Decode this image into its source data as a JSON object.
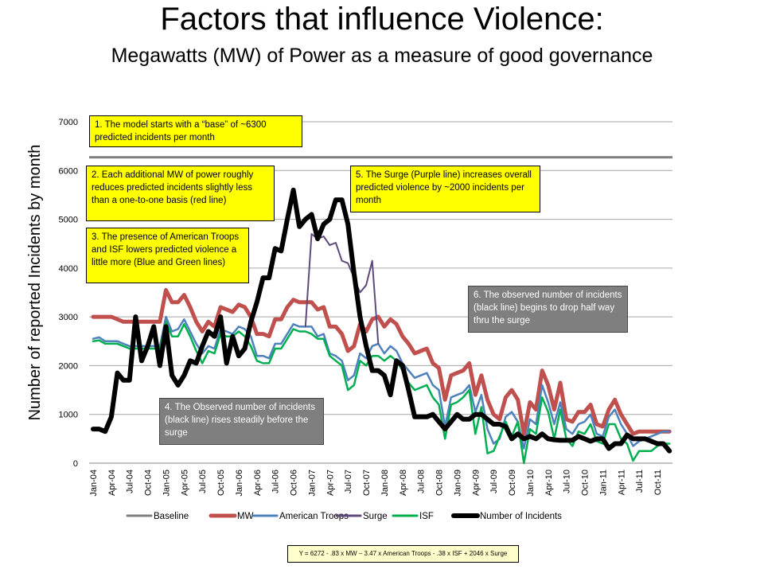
{
  "title": "Factors that influence Violence:",
  "subtitle": "Megawatts (MW) of Power as a measure of good governance",
  "annotations": {
    "note1": "1. The model starts with a “base” of ~6300 predicted incidents per month",
    "note2": "2. Each additional MW of power roughly reduces predicted incidents slightly less than a one-to-one basis (red line)",
    "note3": "3. The presence of American Troops and ISF lowers predicted violence a little more (Blue and Green lines)",
    "note4": "4. The Observed number of incidents (black line) rises steadily before the surge",
    "note5": "5. The Surge (Purple line) increases overall predicted violence by ~2000 incidents per month",
    "note6": "6. The observed number of incidents (black line) begins to drop half way thru the surge"
  },
  "formula": "Y = 6272 - .83 x MW – 3.47 x American  Troops - .38 x ISF + 2046 x Surge",
  "chart_data": {
    "type": "line",
    "ylabel": "Number of reported Incidents by month",
    "xlabel": "",
    "ylim": [
      0,
      7000
    ],
    "yticks": [
      0,
      1000,
      2000,
      3000,
      4000,
      5000,
      6000,
      7000
    ],
    "grid": true,
    "legend_placement": "bottom",
    "x_start": "Jan-04",
    "x_frequency": "monthly",
    "xtick_labels": [
      "Jan-04",
      "Apr-04",
      "Jul-04",
      "Oct-04",
      "Jan-05",
      "Apr-05",
      "Jul-05",
      "Oct-05",
      "Jan-06",
      "Apr-06",
      "Jul-06",
      "Oct-06",
      "Jan-07",
      "Apr-07",
      "Jul-07",
      "Oct-07",
      "Jan-08",
      "Apr-08",
      "Jul-08",
      "Oct-08",
      "Jan-09",
      "Apr-09",
      "Jul-09",
      "Oct-09",
      "Jan-10",
      "Apr-10",
      "Jul-10",
      "Oct-10",
      "Jan-11",
      "Apr-11",
      "Jul-11",
      "Oct-11"
    ],
    "series": [
      {
        "name": "Baseline",
        "color": "#808080",
        "constant": 6272
      },
      {
        "name": "MW",
        "color": "#c0504d",
        "values": [
          3000,
          3000,
          3000,
          3000,
          2950,
          2900,
          2900,
          2900,
          2900,
          2900,
          2900,
          2900,
          3550,
          3300,
          3300,
          3450,
          3200,
          2900,
          2700,
          2900,
          2800,
          3200,
          3150,
          3100,
          3250,
          3200,
          3000,
          2650,
          2650,
          2600,
          2950,
          2950,
          3200,
          3350,
          3300,
          3300,
          3300,
          3150,
          3200,
          2800,
          2800,
          2650,
          2300,
          2400,
          2850,
          2700,
          2950,
          3000,
          2800,
          2950,
          2850,
          2600,
          2450,
          2250,
          2300,
          2350,
          2050,
          1950,
          1300,
          1800,
          1850,
          1900,
          2050,
          1400,
          1800,
          1300,
          1000,
          900,
          1350,
          1500,
          1300,
          600,
          1250,
          1100,
          1900,
          1600,
          1100,
          1650,
          900,
          850,
          1050,
          1050,
          1200,
          800,
          750,
          1100,
          1300,
          1000,
          800,
          600,
          650,
          650,
          650,
          650,
          650,
          650
        ]
      },
      {
        "name": "American Troops",
        "color": "#4f81bd",
        "values": [
          2550,
          2580,
          2500,
          2500,
          2500,
          2450,
          2400,
          2400,
          2400,
          2400,
          2400,
          2400,
          3000,
          2700,
          2750,
          2950,
          2700,
          2450,
          2250,
          2400,
          2350,
          2750,
          2700,
          2650,
          2800,
          2750,
          2600,
          2200,
          2200,
          2150,
          2450,
          2450,
          2650,
          2850,
          2800,
          2800,
          2800,
          2600,
          2650,
          2250,
          2200,
          2100,
          1700,
          1800,
          2250,
          2150,
          2400,
          2450,
          2250,
          2400,
          2300,
          2050,
          1900,
          1750,
          1800,
          1850,
          1600,
          1500,
          750,
          1350,
          1400,
          1450,
          1600,
          1050,
          1400,
          700,
          400,
          500,
          950,
          1050,
          850,
          300,
          900,
          800,
          1600,
          1250,
          800,
          1250,
          700,
          600,
          800,
          850,
          1000,
          600,
          550,
          950,
          1100,
          800,
          600,
          350,
          450,
          500,
          550,
          600,
          650,
          650
        ]
      },
      {
        "name": "Surge",
        "color": "#604a7b",
        "values": [
          null,
          null,
          null,
          null,
          null,
          null,
          null,
          null,
          null,
          null,
          null,
          null,
          null,
          null,
          null,
          null,
          null,
          null,
          null,
          null,
          null,
          null,
          null,
          null,
          null,
          null,
          null,
          null,
          null,
          null,
          null,
          null,
          null,
          null,
          null,
          2800,
          4700,
          4600,
          4650,
          4470,
          4520,
          4150,
          4100,
          3800,
          3500,
          3650,
          4150,
          2450,
          null,
          null,
          null,
          null,
          null,
          null,
          null,
          null,
          null,
          null,
          null,
          null,
          null,
          null,
          null,
          null,
          null,
          null,
          null,
          null,
          null,
          null,
          null,
          null,
          null,
          null,
          null,
          null,
          null,
          null,
          null,
          null,
          null,
          null,
          null,
          null,
          null,
          null,
          null,
          null,
          null,
          null,
          null,
          null,
          null,
          null,
          null,
          null
        ]
      },
      {
        "name": "ISF",
        "color": "#00b050",
        "values": [
          2500,
          2520,
          2450,
          2450,
          2450,
          2400,
          2350,
          2350,
          2350,
          2350,
          2350,
          2350,
          2900,
          2600,
          2600,
          2850,
          2600,
          2300,
          2050,
          2300,
          2250,
          2650,
          2600,
          2600,
          2700,
          2600,
          2400,
          2100,
          2050,
          2050,
          2350,
          2350,
          2550,
          2750,
          2700,
          2700,
          2650,
          2550,
          2550,
          2200,
          2100,
          2000,
          1500,
          1600,
          2100,
          2000,
          2200,
          2200,
          2100,
          2200,
          2100,
          1900,
          1650,
          1500,
          1550,
          1600,
          1350,
          1200,
          500,
          1200,
          1250,
          1350,
          1500,
          600,
          1150,
          200,
          250,
          550,
          850,
          550,
          850,
          0,
          700,
          600,
          1350,
          1050,
          500,
          1100,
          500,
          350,
          650,
          600,
          800,
          450,
          400,
          800,
          800,
          500,
          400,
          50,
          250,
          250,
          250,
          350,
          400,
          400
        ]
      },
      {
        "name": "Number of Incidents",
        "color": "#000000",
        "values": [
          700,
          700,
          650,
          950,
          1850,
          1700,
          1700,
          3000,
          2100,
          2400,
          2800,
          2000,
          2800,
          1800,
          1600,
          1800,
          2100,
          2050,
          2400,
          2700,
          2600,
          3000,
          2050,
          2600,
          2200,
          2350,
          2900,
          3300,
          3800,
          3800,
          4400,
          4350,
          5000,
          5600,
          4850,
          5000,
          5100,
          4600,
          4900,
          5000,
          5400,
          5400,
          4900,
          3900,
          3000,
          2400,
          1900,
          1900,
          1800,
          1400,
          2100,
          2000,
          1500,
          950,
          950,
          950,
          1000,
          850,
          700,
          850,
          1000,
          900,
          900,
          1000,
          1000,
          900,
          800,
          800,
          750,
          500,
          600,
          500,
          550,
          500,
          600,
          500,
          480,
          470,
          470,
          470,
          550,
          500,
          450,
          500,
          500,
          300,
          400,
          400,
          580,
          500,
          500,
          500,
          450,
          400,
          400,
          250
        ]
      }
    ]
  }
}
